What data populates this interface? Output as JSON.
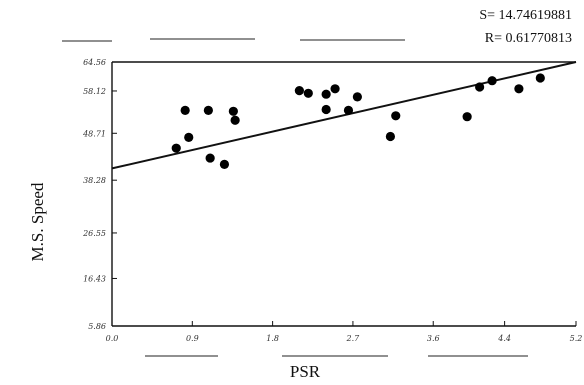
{
  "stats": {
    "s": "S= 14.74619881",
    "r": "R= 0.61770813"
  },
  "chart_data": {
    "type": "scatter",
    "title": "",
    "xlabel": "PSR",
    "ylabel": "M.S. Speed",
    "xlim": [
      0.0,
      5.2
    ],
    "ylim": [
      5.86,
      64.56
    ],
    "x_ticks": [
      {
        "value": 0.0,
        "label": "0.0"
      },
      {
        "value": 0.9,
        "label": "0.9"
      },
      {
        "value": 1.8,
        "label": "1.8"
      },
      {
        "value": 2.7,
        "label": "2.7"
      },
      {
        "value": 3.6,
        "label": "3.6"
      },
      {
        "value": 4.4,
        "label": "4.4"
      },
      {
        "value": 5.2,
        "label": "5.2"
      }
    ],
    "y_ticks": [
      {
        "value": 5.86,
        "label": "5.86"
      },
      {
        "value": 16.43,
        "label": "16.43"
      },
      {
        "value": 26.55,
        "label": "26.55"
      },
      {
        "value": 38.28,
        "label": "38.28"
      },
      {
        "value": 48.71,
        "label": "48.71"
      },
      {
        "value": 58.12,
        "label": "58.12"
      },
      {
        "value": 64.56,
        "label": "64.56"
      }
    ],
    "grid": false,
    "series": [
      {
        "points": [
          {
            "x": 0.72,
            "y": 45.4
          },
          {
            "x": 0.82,
            "y": 53.8
          },
          {
            "x": 0.86,
            "y": 47.8
          },
          {
            "x": 1.08,
            "y": 53.8
          },
          {
            "x": 1.1,
            "y": 43.2
          },
          {
            "x": 1.26,
            "y": 41.8
          },
          {
            "x": 1.36,
            "y": 53.6
          },
          {
            "x": 1.38,
            "y": 51.6
          },
          {
            "x": 2.1,
            "y": 58.2
          },
          {
            "x": 2.2,
            "y": 57.6
          },
          {
            "x": 2.4,
            "y": 57.4
          },
          {
            "x": 2.4,
            "y": 54.0
          },
          {
            "x": 2.5,
            "y": 58.6
          },
          {
            "x": 2.65,
            "y": 53.8
          },
          {
            "x": 2.75,
            "y": 56.8
          },
          {
            "x": 3.12,
            "y": 48.0
          },
          {
            "x": 3.18,
            "y": 52.6
          },
          {
            "x": 3.98,
            "y": 52.4
          },
          {
            "x": 4.12,
            "y": 59.0
          },
          {
            "x": 4.26,
            "y": 60.4
          },
          {
            "x": 4.56,
            "y": 58.6
          },
          {
            "x": 4.8,
            "y": 61.0
          }
        ]
      }
    ],
    "regression_line": {
      "x": [
        0.0,
        5.2
      ],
      "y": [
        40.9,
        64.56
      ]
    }
  }
}
